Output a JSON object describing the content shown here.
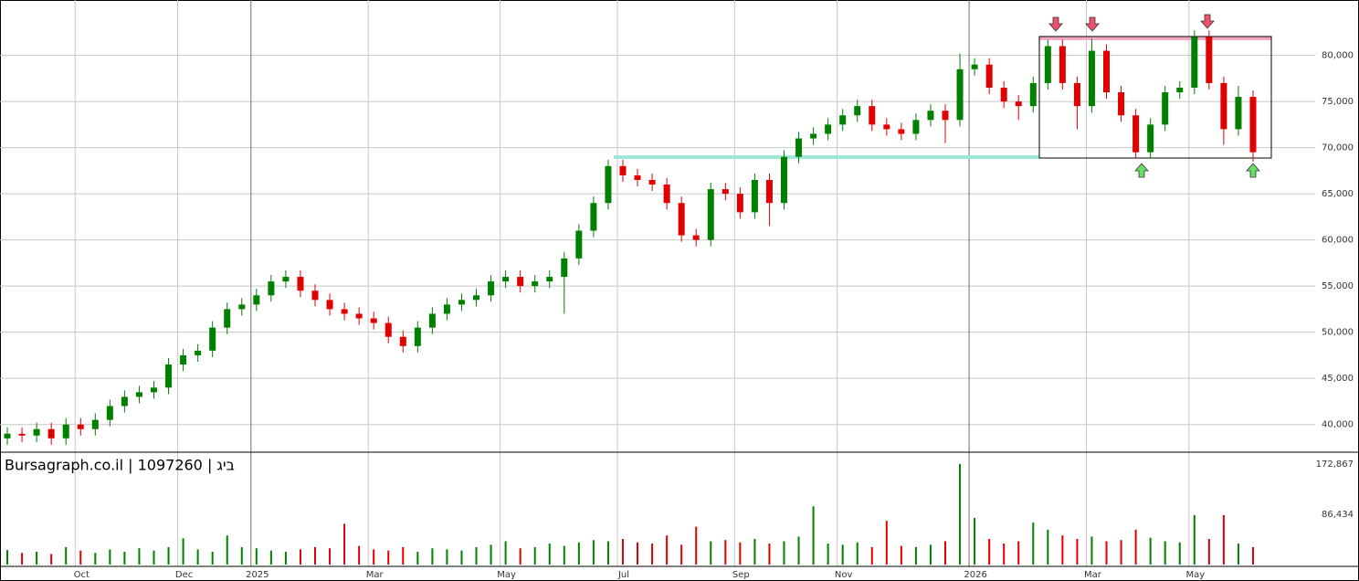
{
  "chart_data": {
    "type": "candlestick",
    "watermark": "Bursagraph.co.il | 1097260 | ביג",
    "categories": [
      null,
      null,
      null,
      null,
      null,
      "Oct",
      null,
      null,
      null,
      null,
      null,
      null,
      "Dec",
      null,
      null,
      null,
      null,
      "2025",
      null,
      null,
      null,
      null,
      null,
      null,
      null,
      "Mar",
      null,
      null,
      null,
      null,
      null,
      null,
      null,
      null,
      "May",
      null,
      null,
      null,
      null,
      null,
      null,
      null,
      "Jul",
      null,
      null,
      null,
      null,
      null,
      null,
      null,
      "Sep",
      null,
      null,
      null,
      null,
      null,
      null,
      "Nov",
      null,
      null,
      null,
      null,
      null,
      null,
      null,
      null,
      "2026",
      null,
      null,
      null,
      null,
      null,
      null,
      null,
      "Mar",
      null,
      null,
      null,
      null,
      null,
      null,
      "May",
      null,
      null,
      null,
      null
    ],
    "open": [
      38500,
      39000,
      38800,
      39500,
      38500,
      40000,
      39500,
      40500,
      42000,
      43000,
      43500,
      44000,
      46500,
      47500,
      48000,
      50500,
      52500,
      53000,
      54000,
      55500,
      56000,
      54500,
      53500,
      52500,
      52000,
      51500,
      51000,
      49500,
      48500,
      50500,
      52000,
      53000,
      53500,
      54000,
      55500,
      56000,
      55000,
      55500,
      56000,
      58000,
      61000,
      64000,
      68000,
      67000,
      66500,
      66000,
      64000,
      60500,
      60000,
      65500,
      65000,
      63000,
      66500,
      64000,
      69000,
      71000,
      71500,
      72500,
      73500,
      74500,
      72500,
      72000,
      71500,
      73000,
      74000,
      73000,
      78500,
      79000,
      76500,
      75000,
      74500,
      77000,
      81000,
      77000,
      74500,
      80500,
      76000,
      73500,
      69500,
      72500,
      76000,
      76500,
      82000,
      77000,
      72000,
      75500
    ],
    "high": [
      39700,
      39700,
      40200,
      40200,
      40700,
      40700,
      41200,
      42700,
      43700,
      44200,
      44700,
      47200,
      48200,
      48700,
      51200,
      53200,
      53700,
      54700,
      56200,
      56700,
      56700,
      55200,
      54200,
      53200,
      52700,
      52200,
      51700,
      50200,
      51200,
      52700,
      53700,
      54200,
      54700,
      56200,
      56700,
      56700,
      56200,
      56700,
      58700,
      61700,
      64700,
      68700,
      68700,
      67700,
      67200,
      66700,
      64700,
      61200,
      66200,
      66200,
      65700,
      67200,
      67200,
      69700,
      71700,
      72200,
      73200,
      74200,
      75200,
      75200,
      73200,
      72700,
      73700,
      74700,
      74700,
      80200,
      79700,
      79700,
      77200,
      75700,
      77700,
      81700,
      81700,
      77700,
      81800,
      81200,
      76700,
      74200,
      73200,
      76700,
      77200,
      82700,
      82700,
      77700,
      76700,
      76200
    ],
    "low": [
      37800,
      38100,
      38100,
      37800,
      37800,
      38800,
      38800,
      39800,
      41300,
      42300,
      42800,
      43300,
      45800,
      46800,
      47300,
      49800,
      51800,
      52300,
      53300,
      54800,
      53800,
      52800,
      51800,
      51300,
      50800,
      50300,
      48800,
      47800,
      47800,
      49800,
      51300,
      52300,
      52800,
      53300,
      54800,
      54300,
      54300,
      54800,
      52000,
      57300,
      60300,
      63300,
      66300,
      65800,
      65300,
      63300,
      59800,
      59300,
      59300,
      64300,
      62300,
      62300,
      61500,
      63300,
      68300,
      70300,
      70800,
      71800,
      72800,
      71800,
      71300,
      70800,
      70800,
      72300,
      70500,
      72300,
      77800,
      75800,
      74300,
      73000,
      73800,
      76300,
      76300,
      72000,
      73800,
      75300,
      72800,
      68800,
      68800,
      71800,
      75300,
      75800,
      76300,
      70300,
      71300,
      68500
    ],
    "close": [
      39000,
      38800,
      39500,
      38500,
      40000,
      39500,
      40500,
      42000,
      43000,
      43500,
      44000,
      46500,
      47500,
      48000,
      50500,
      52500,
      53000,
      54000,
      55500,
      56000,
      54500,
      53500,
      52500,
      52000,
      51500,
      51000,
      49500,
      48500,
      50500,
      52000,
      53000,
      53500,
      54000,
      55500,
      56000,
      55000,
      55500,
      56000,
      58000,
      61000,
      64000,
      68000,
      67000,
      66500,
      66000,
      64000,
      60500,
      60000,
      65500,
      65000,
      63000,
      66500,
      64000,
      69000,
      71000,
      71500,
      72500,
      73500,
      74500,
      72500,
      72000,
      71500,
      73000,
      74000,
      73000,
      78500,
      79000,
      76500,
      75000,
      74500,
      77000,
      81000,
      77000,
      74500,
      80500,
      76000,
      73500,
      69500,
      72500,
      76000,
      76500,
      82000,
      77000,
      72000,
      75500,
      69500
    ],
    "volume": [
      25000,
      20000,
      22000,
      18000,
      30000,
      24000,
      20000,
      26000,
      22000,
      28000,
      24000,
      30000,
      45000,
      26000,
      22000,
      50000,
      30000,
      28000,
      24000,
      22000,
      26000,
      30000,
      28000,
      70000,
      32000,
      26000,
      24000,
      30000,
      22000,
      28000,
      26000,
      24000,
      30000,
      34000,
      40000,
      28000,
      30000,
      36000,
      32000,
      38000,
      42000,
      40000,
      44000,
      38000,
      36000,
      50000,
      34000,
      65000,
      40000,
      42000,
      38000,
      44000,
      36000,
      40000,
      48000,
      100000,
      36000,
      34000,
      38000,
      30000,
      75000,
      32000,
      30000,
      34000,
      40000,
      172867,
      80000,
      44000,
      36000,
      40000,
      72000,
      60000,
      50000,
      44000,
      48000,
      40000,
      42000,
      60000,
      46000,
      40000,
      38000,
      85000,
      44000,
      85000,
      36000,
      30000
    ],
    "up_color": "#008000",
    "down_color": "#e00000",
    "ylim": [
      37000,
      86000
    ],
    "yticks": [
      {
        "value": 40000,
        "label": "40,000"
      },
      {
        "value": 45000,
        "label": "45,000"
      },
      {
        "value": 50000,
        "label": "50,000"
      },
      {
        "value": 55000,
        "label": "55,000"
      },
      {
        "value": 60000,
        "label": "60,000"
      },
      {
        "value": 65000,
        "label": "65,000"
      },
      {
        "value": 70000,
        "label": "70,000"
      },
      {
        "value": 75000,
        "label": "75,000"
      },
      {
        "value": 80000,
        "label": "80,000"
      }
    ],
    "vlim": [
      0,
      193000
    ],
    "vticks": [
      {
        "value": 172867,
        "label": "172,867"
      },
      {
        "value": 86434,
        "label": "86,434"
      }
    ],
    "grid": true
  }
}
